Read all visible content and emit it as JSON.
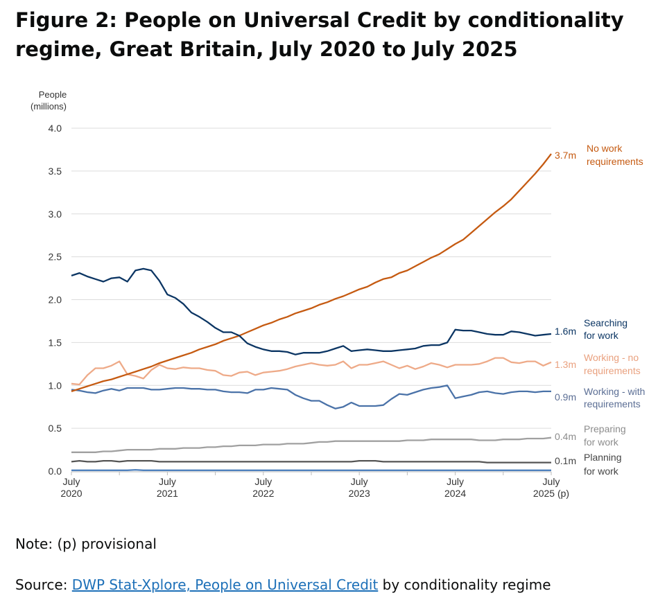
{
  "title": "Figure 2: People on Universal Credit by conditionality regime, Great Britain, July 2020 to July 2025",
  "note": "Note: (p) provisional",
  "source": {
    "prefix": "Source: ",
    "link_text": "DWP Stat-Xplore, People on Universal Credit",
    "suffix": " by conditionality regime"
  },
  "chart_data": {
    "type": "line",
    "ylabel": [
      "People",
      "(millions)"
    ],
    "ylim": [
      0,
      4.0
    ],
    "yticks": [
      "0.0",
      "0.5",
      "1.0",
      "1.5",
      "2.0",
      "2.5",
      "3.0",
      "3.5",
      "4.0"
    ],
    "grid": true,
    "x_start": "July 2020",
    "x_end": "July 2025",
    "x_frequency": "monthly",
    "xticks": [
      [
        "July",
        "2020"
      ],
      [
        "July",
        "2021"
      ],
      [
        "July",
        "2022"
      ],
      [
        "July",
        "2023"
      ],
      [
        "July",
        "2024"
      ],
      [
        "July",
        "2025 (p)"
      ]
    ],
    "series": [
      {
        "name": "No work requirements",
        "end_label": "3.7m",
        "color": "#c55a11",
        "label_color": "#c55a11",
        "values": [
          0.93,
          0.96,
          0.99,
          1.02,
          1.05,
          1.07,
          1.1,
          1.13,
          1.16,
          1.19,
          1.22,
          1.26,
          1.29,
          1.32,
          1.35,
          1.38,
          1.42,
          1.45,
          1.48,
          1.52,
          1.55,
          1.58,
          1.62,
          1.66,
          1.7,
          1.73,
          1.77,
          1.8,
          1.84,
          1.87,
          1.9,
          1.94,
          1.97,
          2.01,
          2.04,
          2.08,
          2.12,
          2.15,
          2.2,
          2.24,
          2.26,
          2.31,
          2.34,
          2.39,
          2.44,
          2.49,
          2.53,
          2.59,
          2.65,
          2.7,
          2.78,
          2.86,
          2.94,
          3.02,
          3.09,
          3.17,
          3.27,
          3.37,
          3.47,
          3.58,
          3.7
        ]
      },
      {
        "name": "Searching for work",
        "end_label": "1.6m",
        "color": "#0b3563",
        "label_color": "#0b3563",
        "values": [
          2.28,
          2.31,
          2.27,
          2.24,
          2.21,
          2.25,
          2.26,
          2.21,
          2.34,
          2.36,
          2.34,
          2.22,
          2.06,
          2.02,
          1.95,
          1.85,
          1.8,
          1.74,
          1.67,
          1.62,
          1.62,
          1.58,
          1.49,
          1.45,
          1.42,
          1.4,
          1.4,
          1.39,
          1.36,
          1.38,
          1.38,
          1.38,
          1.4,
          1.43,
          1.46,
          1.4,
          1.41,
          1.42,
          1.41,
          1.4,
          1.4,
          1.41,
          1.42,
          1.43,
          1.46,
          1.47,
          1.47,
          1.5,
          1.65,
          1.64,
          1.64,
          1.62,
          1.6,
          1.59,
          1.59,
          1.63,
          1.62,
          1.6,
          1.58,
          1.59,
          1.6
        ]
      },
      {
        "name": "Working - no requirements",
        "end_label": "1.3m",
        "color": "#eeaa88",
        "label_color": "#e9a07e",
        "values": [
          1.02,
          1.01,
          1.12,
          1.2,
          1.2,
          1.23,
          1.28,
          1.13,
          1.11,
          1.08,
          1.18,
          1.24,
          1.2,
          1.19,
          1.21,
          1.2,
          1.2,
          1.18,
          1.17,
          1.12,
          1.11,
          1.15,
          1.16,
          1.12,
          1.15,
          1.16,
          1.17,
          1.19,
          1.22,
          1.24,
          1.26,
          1.24,
          1.23,
          1.24,
          1.28,
          1.2,
          1.24,
          1.24,
          1.26,
          1.28,
          1.24,
          1.2,
          1.23,
          1.19,
          1.22,
          1.26,
          1.24,
          1.21,
          1.24,
          1.24,
          1.24,
          1.25,
          1.28,
          1.32,
          1.32,
          1.27,
          1.26,
          1.28,
          1.28,
          1.23,
          1.27
        ]
      },
      {
        "name": "Working - with requirements",
        "end_label": "0.9m",
        "color": "#4a72a8",
        "label_color": "#5b6e94",
        "values": [
          0.95,
          0.94,
          0.92,
          0.91,
          0.94,
          0.96,
          0.94,
          0.97,
          0.97,
          0.97,
          0.95,
          0.95,
          0.96,
          0.97,
          0.97,
          0.96,
          0.96,
          0.95,
          0.95,
          0.93,
          0.92,
          0.92,
          0.91,
          0.95,
          0.95,
          0.97,
          0.96,
          0.95,
          0.89,
          0.85,
          0.82,
          0.82,
          0.77,
          0.73,
          0.75,
          0.8,
          0.76,
          0.76,
          0.76,
          0.77,
          0.84,
          0.9,
          0.89,
          0.92,
          0.95,
          0.97,
          0.98,
          1.0,
          0.85,
          0.87,
          0.89,
          0.92,
          0.93,
          0.91,
          0.9,
          0.92,
          0.93,
          0.93,
          0.92,
          0.93,
          0.93
        ]
      },
      {
        "name": "Preparing for work",
        "end_label": "0.4m",
        "color": "#a0a0a0",
        "label_color": "#8c8c8c",
        "values": [
          0.22,
          0.22,
          0.22,
          0.22,
          0.23,
          0.23,
          0.24,
          0.25,
          0.25,
          0.25,
          0.25,
          0.26,
          0.26,
          0.26,
          0.27,
          0.27,
          0.27,
          0.28,
          0.28,
          0.29,
          0.29,
          0.3,
          0.3,
          0.3,
          0.31,
          0.31,
          0.31,
          0.32,
          0.32,
          0.32,
          0.33,
          0.34,
          0.34,
          0.35,
          0.35,
          0.35,
          0.35,
          0.35,
          0.35,
          0.35,
          0.35,
          0.35,
          0.36,
          0.36,
          0.36,
          0.37,
          0.37,
          0.37,
          0.37,
          0.37,
          0.37,
          0.36,
          0.36,
          0.36,
          0.37,
          0.37,
          0.37,
          0.38,
          0.38,
          0.38,
          0.39
        ]
      },
      {
        "name": "Planning for work",
        "end_label": "0.1m",
        "color": "#555555",
        "label_color": "#444444",
        "values": [
          0.11,
          0.12,
          0.11,
          0.11,
          0.12,
          0.12,
          0.11,
          0.12,
          0.12,
          0.12,
          0.12,
          0.11,
          0.11,
          0.11,
          0.11,
          0.11,
          0.11,
          0.11,
          0.11,
          0.11,
          0.11,
          0.11,
          0.11,
          0.11,
          0.11,
          0.11,
          0.11,
          0.11,
          0.11,
          0.11,
          0.11,
          0.11,
          0.11,
          0.11,
          0.11,
          0.11,
          0.12,
          0.12,
          0.12,
          0.11,
          0.11,
          0.11,
          0.11,
          0.11,
          0.11,
          0.11,
          0.11,
          0.11,
          0.11,
          0.11,
          0.11,
          0.11,
          0.1,
          0.1,
          0.1,
          0.1,
          0.1,
          0.1,
          0.1,
          0.1,
          0.1
        ]
      },
      {
        "color": "#4f81bd",
        "values": [
          0.01,
          0.01,
          0.01,
          0.01,
          0.01,
          0.01,
          0.01,
          0.01,
          0.015,
          0.01,
          0.01,
          0.01,
          0.01,
          0.01,
          0.01,
          0.01,
          0.01,
          0.01,
          0.01,
          0.01,
          0.01,
          0.01,
          0.01,
          0.01,
          0.01,
          0.01,
          0.01,
          0.01,
          0.01,
          0.01,
          0.01,
          0.01,
          0.01,
          0.01,
          0.01,
          0.01,
          0.01,
          0.01,
          0.01,
          0.01,
          0.01,
          0.01,
          0.01,
          0.01,
          0.01,
          0.01,
          0.01,
          0.01,
          0.01,
          0.01,
          0.01,
          0.01,
          0.01,
          0.01,
          0.01,
          0.01,
          0.01,
          0.01,
          0.01,
          0.01,
          0.01
        ]
      }
    ]
  }
}
